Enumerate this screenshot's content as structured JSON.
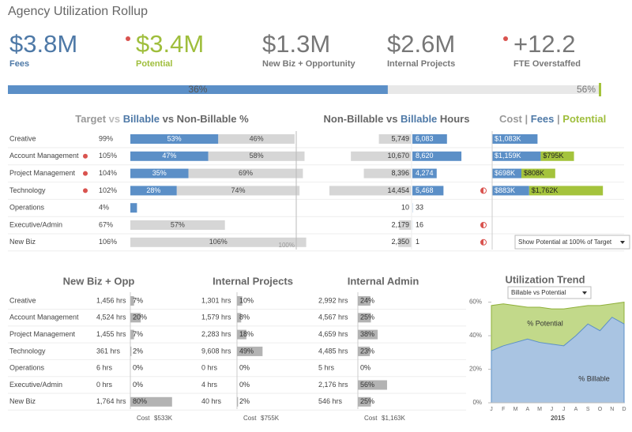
{
  "title": "Agency Utilization Rollup",
  "kpis": [
    {
      "value": "$3.8M",
      "label": "Fees",
      "color": "#4e79a7",
      "alert": false
    },
    {
      "value": "$3.4M",
      "label": "Potential",
      "color": "#9fbe3c",
      "alert": true
    },
    {
      "value": "$1.3M",
      "label": "New Biz + Opportunity",
      "color": "#777777",
      "alert": false
    },
    {
      "value": "$2.6M",
      "label": "Internal Projects",
      "color": "#777777",
      "alert": false
    },
    {
      "value": "+12.2",
      "label": "FTE Overstaffed",
      "color": "#777777",
      "alert": true
    }
  ],
  "progress": {
    "fill": {
      "value": 36,
      "label": "36%"
    },
    "target": {
      "value": 56,
      "label": "56%"
    }
  },
  "departments": [
    "Creative",
    "Account Management",
    "Project Management",
    "Technology",
    "Operations",
    "Executive/Admin",
    "New Biz"
  ],
  "alerts": [
    false,
    true,
    true,
    true,
    false,
    false,
    false
  ],
  "utilization": {
    "title_parts": [
      "Target",
      " vs ",
      "Billable",
      " vs Non-Billable %"
    ],
    "title_colors": [
      "#999999",
      "#bbbbbb",
      "#4e79a7",
      "#666666"
    ],
    "target_labels": [
      "99%",
      "105%",
      "104%",
      "102%",
      "4%",
      "67%",
      "106%"
    ],
    "billable": [
      53,
      47,
      35,
      28,
      4,
      null,
      null
    ],
    "billable_labels": [
      "53%",
      "47%",
      "35%",
      "28%",
      null,
      null,
      null
    ],
    "non_billable": [
      46,
      58,
      69,
      74,
      null,
      57,
      106
    ],
    "non_billable_labels": [
      "46%",
      "58%",
      "69%",
      "74%",
      null,
      "57%",
      "106%"
    ],
    "reference": {
      "value": 100,
      "label": "100%"
    }
  },
  "hours": {
    "title_parts": [
      "Non-Billable vs ",
      "Billable",
      " Hours"
    ],
    "title_colors": [
      "#666666",
      "#4e79a7",
      "#666666"
    ],
    "non_billable": [
      5749,
      10670,
      8396,
      14454,
      10,
      2179,
      2350
    ],
    "non_billable_labels": [
      "5,749",
      "10,670",
      "8,396",
      "14,454",
      "10",
      "2,179",
      "2,350"
    ],
    "billable": [
      6083,
      8620,
      4274,
      5468,
      33,
      16,
      1
    ],
    "billable_labels": [
      "6,083",
      "8,620",
      "4,274",
      "5,468",
      "33",
      "16",
      "1"
    ],
    "flags": [
      false,
      false,
      false,
      true,
      false,
      true,
      true
    ]
  },
  "cost": {
    "title_parts": [
      "Cost",
      " | ",
      "Fees",
      " | ",
      "Potential"
    ],
    "title_colors": [
      "#999999",
      "#999999",
      "#4e79a7",
      "#999999",
      "#9fbe3c"
    ],
    "fees": [
      1083,
      1159,
      698,
      883,
      null,
      null,
      null
    ],
    "fees_labels": [
      "$1,083K",
      "$1,159K",
      "$698K",
      "$883K",
      null,
      null,
      null
    ],
    "potential": [
      null,
      795,
      808,
      1762,
      null,
      null,
      null
    ],
    "potential_labels": [
      null,
      "$795K",
      "$808K",
      "$1,762K",
      null,
      null,
      null
    ],
    "dropdown": "Show Potential at 100% of Target"
  },
  "bottom": [
    {
      "title": "New Biz + Opp",
      "hours": [
        "1,456 hrs",
        "4,524 hrs",
        "1,455 hrs",
        "361 hrs",
        "6 hrs",
        "0 hrs",
        "1,764 hrs"
      ],
      "pcts": [
        7,
        20,
        7,
        2,
        0,
        0,
        80
      ],
      "pct_labels": [
        "7%",
        "20%",
        "7%",
        "2%",
        "0%",
        "0%",
        "80%"
      ],
      "cost_label": "Cost",
      "cost": "$533K"
    },
    {
      "title": "Internal Projects",
      "hours": [
        "1,301 hrs",
        "1,579 hrs",
        "2,283 hrs",
        "9,608 hrs",
        "0 hrs",
        "4 hrs",
        "40 hrs"
      ],
      "pcts": [
        10,
        8,
        18,
        49,
        0,
        0,
        2
      ],
      "pct_labels": [
        "10%",
        "8%",
        "18%",
        "49%",
        "0%",
        "0%",
        "2%"
      ],
      "cost_label": "Cost",
      "cost": "$755K"
    },
    {
      "title": "Internal Admin",
      "hours": [
        "2,992 hrs",
        "4,567 hrs",
        "4,659 hrs",
        "4,485 hrs",
        "5 hrs",
        "2,176 hrs",
        "546 hrs"
      ],
      "pcts": [
        24,
        25,
        38,
        23,
        0,
        56,
        25
      ],
      "pct_labels": [
        "24%",
        "25%",
        "38%",
        "23%",
        "0%",
        "56%",
        "25%"
      ],
      "cost_label": "Cost",
      "cost": "$1,163K"
    }
  ],
  "trend": {
    "type": "area",
    "title": "Utilization Trend",
    "dropdown": "Billable vs Potential",
    "categories": [
      "J",
      "F",
      "M",
      "A",
      "M",
      "J",
      "J",
      "A",
      "S",
      "O",
      "N",
      "D"
    ],
    "year": "2015",
    "ylim": [
      0,
      65
    ],
    "yticks": [
      {
        "value": 0,
        "label": "0%"
      },
      {
        "value": 20,
        "label": "20%"
      },
      {
        "value": 40,
        "label": "40%"
      },
      {
        "value": 60,
        "label": "60%"
      }
    ],
    "series": [
      {
        "name": "% Potential",
        "color": "#c2d98a",
        "values": [
          58,
          59,
          58,
          57,
          57,
          56,
          56,
          57,
          58,
          58,
          59,
          60
        ]
      },
      {
        "name": "% Billable",
        "color": "#a9c4e2",
        "values": [
          31,
          34,
          36,
          38,
          36,
          35,
          34,
          40,
          47,
          43,
          51,
          47
        ]
      }
    ]
  }
}
